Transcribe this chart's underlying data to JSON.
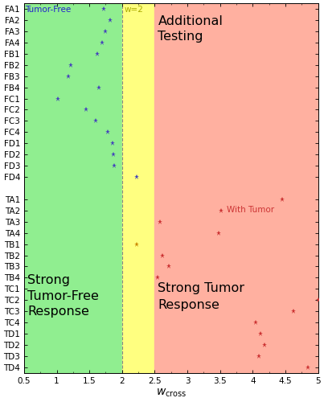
{
  "ytick_labels": [
    "FA1",
    "FA2",
    "FA3",
    "FA4",
    "FB1",
    "FB2",
    "FB3",
    "FB4",
    "FC1",
    "FC2",
    "FC3",
    "FC4",
    "FD1",
    "FD2",
    "FD3",
    "FD4",
    "",
    "TA1",
    "TA2",
    "TA3",
    "TA4",
    "TB1",
    "TB2",
    "TB3",
    "TB4",
    "TC1",
    "TC2",
    "TC3",
    "TC4",
    "TD1",
    "TD2",
    "TD3",
    "TD4"
  ],
  "blue_points": {
    "FA1": 1.72,
    "FA2": 1.82,
    "FA3": 1.75,
    "FA4": 1.7,
    "FB1": 1.62,
    "FB2": 1.22,
    "FB3": 1.18,
    "FB4": 1.65,
    "FC1": 1.02,
    "FC2": 1.45,
    "FC3": 1.6,
    "FC4": 1.78,
    "FD1": 1.85,
    "FD2": 1.87,
    "FD3": 1.88,
    "FD4": 2.22
  },
  "red_points": {
    "TA1": 4.45,
    "TA2": 3.52,
    "TA3": 2.58,
    "TA4": 3.48,
    "TB1": 2.22,
    "TB2": 2.62,
    "TB3": 2.72,
    "TB4": 2.55,
    "TC2": 5.0,
    "TC3": 4.62,
    "TC4": 4.05,
    "TD1": 4.12,
    "TD2": 4.18,
    "TD3": 4.1,
    "TD4": 4.85
  },
  "xlim": [
    0.5,
    5.0
  ],
  "xticks": [
    0.5,
    1.0,
    1.5,
    2.0,
    2.5,
    3.0,
    3.5,
    4.0,
    4.5,
    5.0
  ],
  "green_region": [
    0.5,
    2.0
  ],
  "yellow_region": [
    2.0,
    2.5
  ],
  "red_region": [
    2.5,
    5.0
  ],
  "green_color": "#90EE90",
  "yellow_color": "#FFFF80",
  "red_color": "#FFB0A0",
  "blue_dot_color": "#4444BB",
  "red_dot_color": "#CC3333",
  "orange_dot_color": "#CC8800",
  "text_tumor_free": "Tumor-Free",
  "text_tumor_free_color": "#2222CC",
  "text_w2": "w=2",
  "text_w2_color": "#AAAA00",
  "text_add_testing_line1": "Additional",
  "text_add_testing_line2": "Testing",
  "text_strong_tf_line1": "Strong",
  "text_strong_tf_line2": "Tumor-Free",
  "text_strong_tf_line3": "Response",
  "text_strong_tumor_line1": "Strong Tumor",
  "text_strong_tumor_line2": "Response",
  "text_with_tumor": "With Tumor",
  "text_with_tumor_color": "#CC3333",
  "tick_fontsize": 7.5,
  "annotation_fontsize": 11.5
}
